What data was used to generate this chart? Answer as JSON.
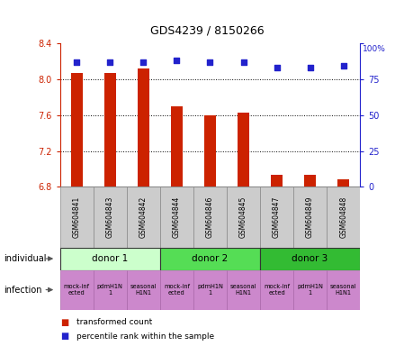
{
  "title": "GDS4239 / 8150266",
  "samples": [
    "GSM604841",
    "GSM604843",
    "GSM604842",
    "GSM604844",
    "GSM604846",
    "GSM604845",
    "GSM604847",
    "GSM604849",
    "GSM604848"
  ],
  "bar_values": [
    8.07,
    8.07,
    8.12,
    7.7,
    7.6,
    7.63,
    6.93,
    6.93,
    6.88
  ],
  "dot_values": [
    87,
    87,
    87,
    88,
    87,
    87,
    83,
    83,
    84
  ],
  "ylim": [
    6.8,
    8.4
  ],
  "y2lim": [
    0,
    100
  ],
  "yticks": [
    6.8,
    7.2,
    7.6,
    8.0,
    8.4
  ],
  "y2ticks": [
    0,
    25,
    50,
    75,
    100
  ],
  "bar_color": "#cc2200",
  "dot_color": "#2222cc",
  "bar_bottom": 6.8,
  "donors": [
    {
      "label": "donor 1",
      "start": 0,
      "end": 3,
      "color": "#ccffcc"
    },
    {
      "label": "donor 2",
      "start": 3,
      "end": 6,
      "color": "#55dd55"
    },
    {
      "label": "donor 3",
      "start": 6,
      "end": 9,
      "color": "#33bb33"
    }
  ],
  "infection_labels": [
    "mock-inf\nected",
    "pdmH1N\n1",
    "seasonal\nH1N1",
    "mock-inf\nected",
    "pdmH1N\n1",
    "seasonal\nH1N1",
    "mock-inf\nected",
    "pdmH1N\n1",
    "seasonal\nH1N1"
  ],
  "infection_color": "#cc88cc",
  "individual_label": "individual",
  "infection_label": "infection",
  "legend_bar": "transformed count",
  "legend_dot": "percentile rank within the sample",
  "grid_color": "#000000",
  "axis_color_left": "#cc2200",
  "axis_color_right": "#2222cc",
  "sample_bg": "#cccccc"
}
